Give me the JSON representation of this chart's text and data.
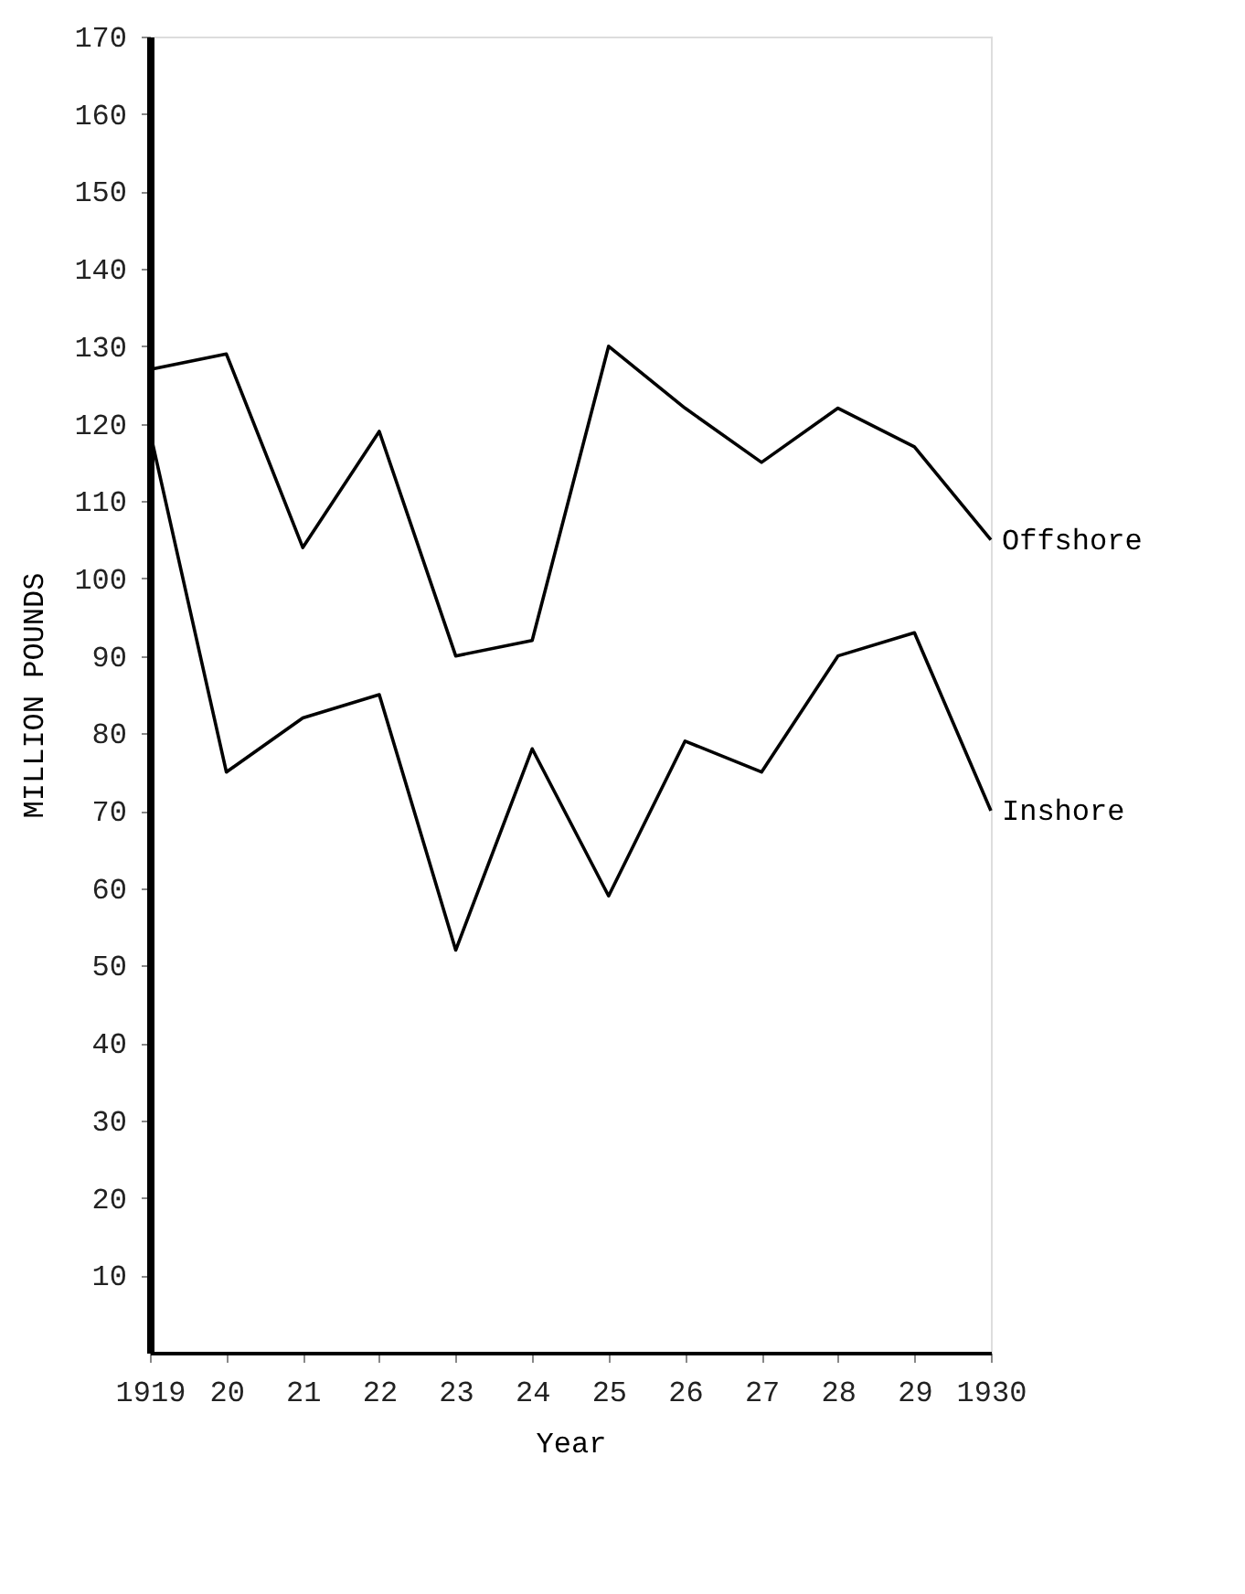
{
  "chart_data": {
    "type": "line",
    "xlabel": "Year",
    "ylabel": "MILLION POUNDS",
    "x": [
      1919,
      1920,
      1921,
      1922,
      1923,
      1924,
      1925,
      1926,
      1927,
      1928,
      1929,
      1930
    ],
    "series": [
      {
        "name": "Offshore",
        "color": "#000000",
        "values": [
          127,
          129,
          104,
          119,
          90,
          92,
          130,
          122,
          115,
          122,
          117,
          105
        ]
      },
      {
        "name": "Inshore",
        "color": "#000000",
        "values": [
          119,
          75,
          82,
          85,
          52,
          78,
          59,
          79,
          75,
          90,
          93,
          70
        ]
      }
    ],
    "xlim": [
      1919,
      1930
    ],
    "xticks": [
      {
        "value": 1919,
        "label": "1919"
      },
      {
        "value": 1920,
        "label": "20"
      },
      {
        "value": 1921,
        "label": "21"
      },
      {
        "value": 1922,
        "label": "22"
      },
      {
        "value": 1923,
        "label": "23"
      },
      {
        "value": 1924,
        "label": "24"
      },
      {
        "value": 1925,
        "label": "25"
      },
      {
        "value": 1926,
        "label": "26"
      },
      {
        "value": 1927,
        "label": "27"
      },
      {
        "value": 1928,
        "label": "28"
      },
      {
        "value": 1929,
        "label": "29"
      },
      {
        "value": 1930,
        "label": "1930"
      }
    ],
    "ylim": [
      0,
      170
    ],
    "yticks": [
      10,
      20,
      30,
      40,
      50,
      60,
      70,
      80,
      90,
      100,
      110,
      120,
      130,
      140,
      150,
      160,
      170
    ],
    "grid": false,
    "legend": false,
    "marker": "none",
    "line_style": "solid"
  }
}
